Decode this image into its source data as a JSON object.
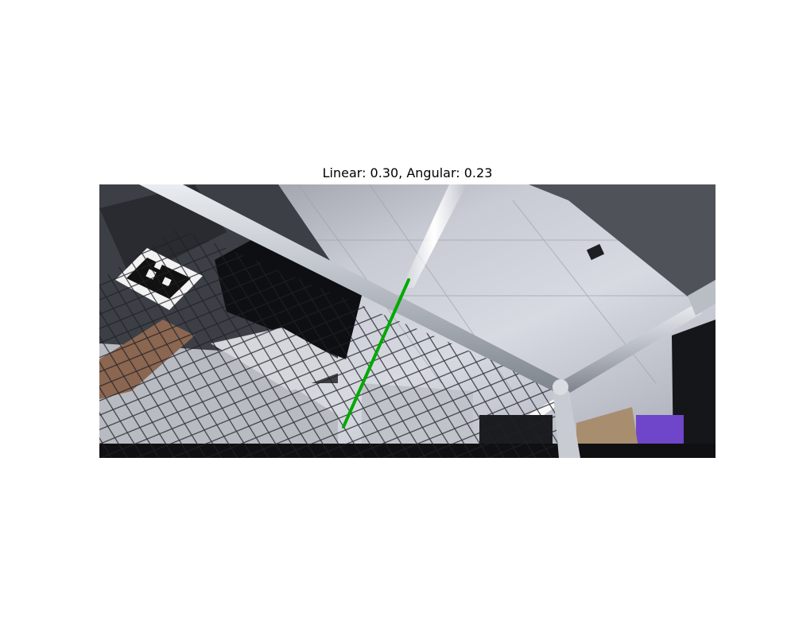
{
  "figure": {
    "title": "Linear: 0.30, Angular: 0.23"
  },
  "camera_image": {
    "scene": "indoor-lab-net-goal-ceiling",
    "overlay_line_color": "#00aa00"
  }
}
